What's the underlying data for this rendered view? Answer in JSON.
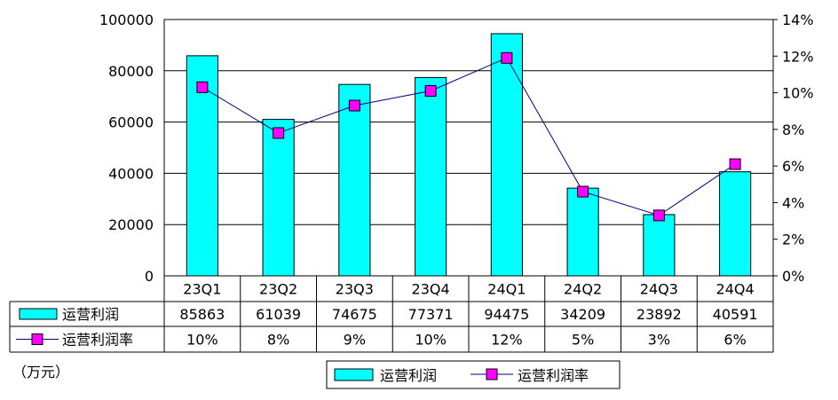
{
  "chart_data": {
    "type": "bar",
    "categories": [
      "23Q1",
      "23Q2",
      "23Q3",
      "23Q4",
      "24Q1",
      "24Q2",
      "24Q3",
      "24Q4"
    ],
    "series": [
      {
        "name": "运营利润",
        "type": "bar",
        "axis": "left",
        "values": [
          85863,
          61039,
          74675,
          77371,
          94475,
          34209,
          23892,
          40591
        ],
        "color": "#00ffff"
      },
      {
        "name": "运营利润率",
        "type": "line",
        "axis": "right",
        "values": [
          10.3,
          7.8,
          9.3,
          10.1,
          11.9,
          4.6,
          3.3,
          6.1
        ],
        "labels": [
          "10%",
          "8%",
          "9%",
          "10%",
          "12%",
          "5%",
          "3%",
          "6%"
        ],
        "color": "#ff00ff",
        "line_color": "#000080"
      }
    ],
    "y_left": {
      "min": 0,
      "max": 100000,
      "ticks": [
        0,
        20000,
        40000,
        60000,
        80000,
        100000
      ]
    },
    "y_right": {
      "min": 0,
      "max": 14,
      "ticks": [
        "0%",
        "2%",
        "4%",
        "6%",
        "8%",
        "10%",
        "12%",
        "14%"
      ]
    },
    "unit": "（万元）",
    "grid": true,
    "legend_position": "bottom"
  }
}
